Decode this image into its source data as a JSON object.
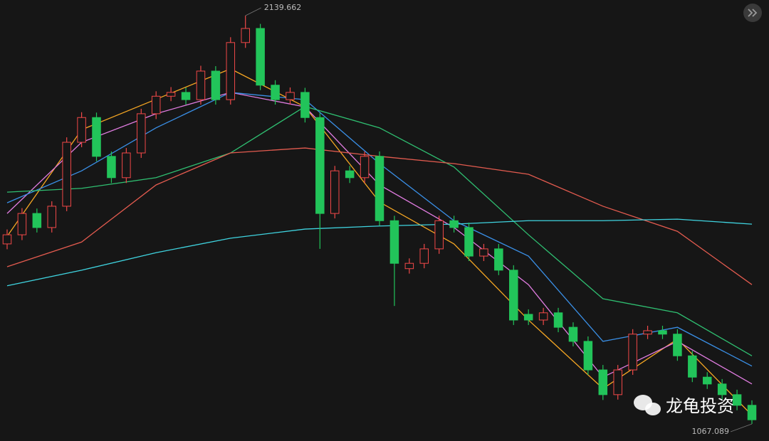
{
  "chart_data": {
    "type": "candlestick",
    "up_color": "#f04848",
    "down_color": "#22c45a",
    "open": [
      1540,
      1564,
      1620,
      1583,
      1639,
      1807,
      1872,
      1770,
      1714,
      1779,
      1882,
      1928,
      1938,
      1919,
      1994,
      1919,
      2069,
      2106,
      1957,
      1919,
      1938,
      1872,
      1620,
      1732,
      1714,
      1770,
      1601,
      1475,
      1489,
      1527,
      1601,
      1583,
      1508,
      1527,
      1471,
      1355,
      1340,
      1359,
      1321,
      1284,
      1209,
      1144,
      1209,
      1303,
      1312,
      1303,
      1246,
      1190,
      1172,
      1144,
      1116
    ],
    "high": [
      1578,
      1634,
      1633,
      1652,
      1820,
      1886,
      1885,
      1783,
      1792,
      1895,
      1941,
      1952,
      1951,
      2008,
      2007,
      2083,
      2139.662,
      2118,
      1970,
      1951,
      1950,
      1885,
      1745,
      1745,
      1783,
      1783,
      1614,
      1502,
      1540,
      1614,
      1614,
      1596,
      1540,
      1540,
      1484,
      1368,
      1372,
      1372,
      1334,
      1297,
      1222,
      1222,
      1316,
      1325,
      1325,
      1316,
      1259,
      1203,
      1185,
      1157,
      1129
    ],
    "low": [
      1526,
      1550,
      1570,
      1570,
      1626,
      1794,
      1757,
      1700,
      1700,
      1766,
      1868,
      1915,
      1906,
      1906,
      1906,
      1906,
      2055,
      1944,
      1906,
      1906,
      1859,
      1527,
      1607,
      1700,
      1700,
      1588,
      1377,
      1462,
      1476,
      1514,
      1570,
      1495,
      1495,
      1458,
      1327,
      1327,
      1327,
      1308,
      1271,
      1196,
      1130,
      1131,
      1196,
      1290,
      1290,
      1233,
      1177,
      1159,
      1131,
      1103,
      1067.089
    ],
    "close": [
      1564,
      1620,
      1583,
      1639,
      1807,
      1872,
      1770,
      1714,
      1779,
      1882,
      1928,
      1938,
      1919,
      1994,
      1919,
      2069,
      2106,
      1957,
      1919,
      1938,
      1872,
      1620,
      1732,
      1714,
      1770,
      1601,
      1489,
      1489,
      1527,
      1601,
      1583,
      1508,
      1527,
      1471,
      1340,
      1340,
      1359,
      1321,
      1284,
      1209,
      1144,
      1209,
      1303,
      1312,
      1303,
      1246,
      1190,
      1172,
      1144,
      1116,
      1078
    ],
    "series": [
      {
        "color": "#f5a623",
        "x": [
          0,
          5,
          10,
          15,
          20,
          25,
          30,
          35,
          40,
          45,
          50
        ],
        "values": [
          1560,
          1840,
          1920,
          2000,
          1900,
          1650,
          1540,
          1340,
          1160,
          1290,
          1090
        ]
      },
      {
        "color": "#e07ce0",
        "x": [
          0,
          5,
          10,
          15,
          20,
          25,
          30,
          35,
          40,
          45,
          50
        ],
        "values": [
          1620,
          1807,
          1882,
          1938,
          1900,
          1695,
          1583,
          1433,
          1190,
          1284,
          1172
        ]
      },
      {
        "color": "#3a8fe6",
        "x": [
          0,
          5,
          10,
          15,
          20,
          25,
          30,
          35,
          40,
          45,
          50
        ],
        "values": [
          1648,
          1732,
          1845,
          1938,
          1919,
          1751,
          1601,
          1508,
          1284,
          1321,
          1219
        ]
      },
      {
        "color": "#2fbf71",
        "x": [
          0,
          5,
          10,
          15,
          20,
          25,
          30,
          35,
          40,
          45,
          50
        ],
        "values": [
          1676,
          1686,
          1714,
          1779,
          1901,
          1845,
          1742,
          1564,
          1396,
          1359,
          1246
        ]
      },
      {
        "color": "#e35b4f",
        "x": [
          0,
          5,
          10,
          15,
          20,
          25,
          30,
          35,
          40,
          45,
          50
        ],
        "values": [
          1480,
          1545,
          1695,
          1779,
          1792,
          1770,
          1751,
          1723,
          1639,
          1573,
          1433
        ]
      },
      {
        "color": "#3fd4e0",
        "x": [
          0,
          5,
          10,
          15,
          20,
          25,
          30,
          35,
          40,
          45,
          50
        ],
        "values": [
          1430,
          1471,
          1517,
          1555,
          1579,
          1587,
          1592,
          1601,
          1601,
          1605,
          1592
        ]
      }
    ],
    "watermark": "龙龟投资"
  }
}
